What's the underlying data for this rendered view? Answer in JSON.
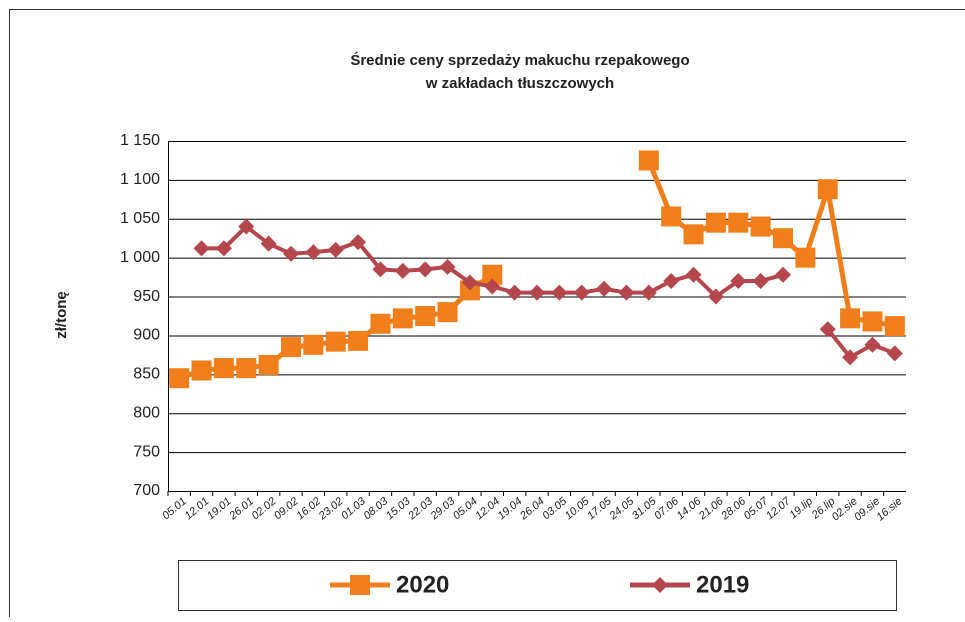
{
  "chart_data": {
    "type": "line",
    "title": [
      "Średnie ceny sprzedaży makuchu rzepakowego",
      "w zakładach tłuszczowych"
    ],
    "y_label": "zł/tonę",
    "categories": [
      "05.01",
      "12.01",
      "19.01",
      "26.01",
      "02.02",
      "09.02",
      "16.02",
      "23.02",
      "01.03",
      "08.03",
      "15.03",
      "22.03",
      "29.03",
      "05.04",
      "12.04",
      "19.04",
      "26.04",
      "03.05",
      "10.05",
      "17.05",
      "24.05",
      "31.05",
      "07.06",
      "14.06",
      "21.06",
      "28.06",
      "05.07",
      "12.07",
      "19.lip",
      "26.lip",
      "02.sie",
      "09.sie",
      "16.sie"
    ],
    "series": [
      {
        "name": "2020",
        "color": "#f07e1b",
        "marker": "square",
        "values": [
          845,
          855,
          858,
          858,
          862,
          885,
          888,
          892,
          893,
          915,
          922,
          925,
          930,
          958,
          978,
          null,
          null,
          null,
          null,
          null,
          null,
          1125,
          1053,
          1030,
          1045,
          1045,
          1040,
          1025,
          1000,
          1088,
          922,
          918,
          912
        ]
      },
      {
        "name": "2019",
        "color": "#b5474c",
        "marker": "diamond",
        "values": [
          null,
          1012,
          1012,
          1040,
          1018,
          1005,
          1007,
          1010,
          1020,
          985,
          983,
          985,
          988,
          968,
          963,
          955,
          955,
          955,
          955,
          960,
          955,
          955,
          970,
          978,
          950,
          970,
          970,
          978,
          null,
          908,
          872,
          888,
          877
        ]
      }
    ],
    "ylim": [
      700,
      1150
    ],
    "yticks": [
      700,
      750,
      800,
      850,
      900,
      950,
      {
        "value": 1000,
        "label": "1 000"
      },
      {
        "value": 1050,
        "label": "1 050"
      },
      {
        "value": 1100,
        "label": "1 100"
      },
      {
        "value": 1150,
        "label": "1 150"
      }
    ],
    "grid": true,
    "legend": "bottom"
  }
}
